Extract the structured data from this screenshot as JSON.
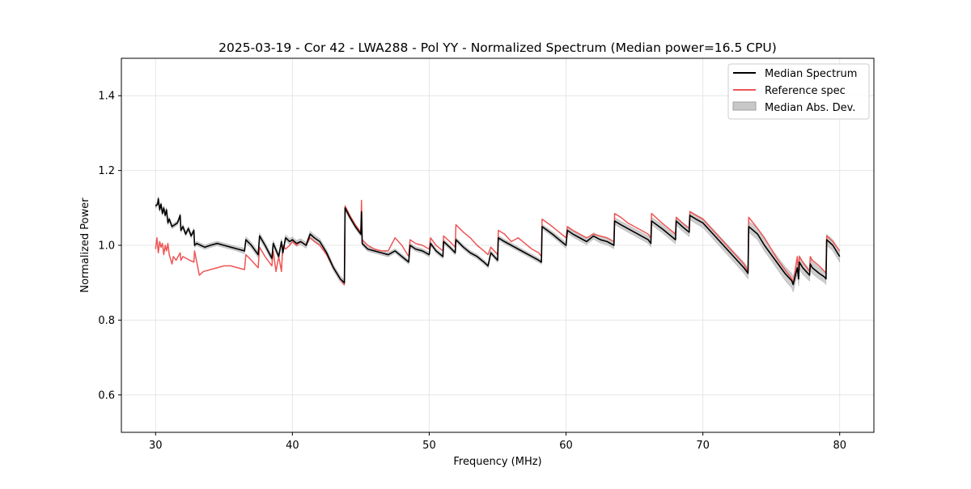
{
  "chart_data": {
    "type": "line",
    "title": "2025-03-19 - Cor 42 - LWA288 - Pol YY - Normalized Spectrum (Median power=16.5 CPU)",
    "xlabel": "Frequency (MHz)",
    "ylabel": "Normalized Power",
    "xlim": [
      27.5,
      82.5
    ],
    "ylim": [
      0.5,
      1.5
    ],
    "xticks": [
      30,
      40,
      50,
      60,
      70,
      80
    ],
    "yticks": [
      0.6,
      0.8,
      1.0,
      1.2,
      1.4
    ],
    "ytick_labels": [
      "0.6",
      "0.8",
      "1.0",
      "1.2",
      "1.4"
    ],
    "grid": true,
    "legend_position": "top-right",
    "series": [
      {
        "name": "Median Spectrum",
        "color": "#000000",
        "x": [
          30.0,
          30.15,
          30.2,
          30.3,
          30.4,
          30.5,
          30.6,
          30.7,
          30.8,
          30.9,
          31.0,
          31.1,
          31.2,
          31.4,
          31.6,
          31.8,
          31.85,
          32.0,
          32.2,
          32.4,
          32.6,
          32.8,
          32.85,
          33.0,
          33.3,
          33.6,
          34.0,
          34.5,
          35.0,
          35.5,
          36.0,
          36.5,
          36.6,
          37.0,
          37.5,
          37.6,
          38.0,
          38.5,
          38.6,
          39.0,
          39.2,
          39.3,
          39.5,
          39.8,
          40.0,
          40.3,
          40.6,
          41.0,
          41.3,
          41.6,
          42.0,
          42.5,
          43.0,
          43.5,
          43.8,
          43.85,
          44.2,
          44.6,
          45.0,
          45.05,
          45.1,
          45.5,
          46.0,
          46.5,
          47.0,
          47.5,
          48.0,
          48.5,
          48.6,
          49.0,
          49.5,
          50.0,
          50.1,
          50.5,
          51.0,
          51.05,
          51.5,
          51.9,
          51.95,
          52.5,
          53.0,
          53.5,
          54.0,
          54.3,
          54.5,
          55.0,
          55.05,
          55.5,
          56.0,
          56.5,
          57.0,
          57.5,
          58.0,
          58.2,
          58.25,
          59.0,
          59.5,
          60.0,
          60.1,
          60.5,
          61.0,
          61.5,
          62.0,
          62.5,
          63.0,
          63.5,
          63.55,
          64.0,
          64.5,
          65.0,
          65.5,
          66.0,
          66.2,
          66.25,
          67.0,
          67.5,
          68.0,
          68.05,
          68.5,
          69.0,
          69.05,
          69.5,
          70.0,
          70.5,
          71.0,
          71.5,
          72.0,
          72.5,
          73.0,
          73.3,
          73.35,
          74.0,
          74.5,
          75.0,
          75.5,
          76.0,
          76.5,
          76.6,
          76.9,
          77.0,
          77.05,
          77.3,
          77.8,
          77.85,
          78.0,
          78.5,
          78.9,
          79.0,
          79.05,
          79.5,
          80.0
        ],
        "values": [
          1.105,
          1.11,
          1.125,
          1.095,
          1.11,
          1.085,
          1.1,
          1.08,
          1.095,
          1.06,
          1.07,
          1.06,
          1.05,
          1.055,
          1.06,
          1.08,
          1.04,
          1.05,
          1.03,
          1.045,
          1.025,
          1.04,
          1.0,
          1.005,
          1.0,
          0.995,
          1.0,
          1.005,
          1.0,
          0.995,
          0.99,
          0.985,
          1.015,
          1.0,
          0.975,
          1.025,
          1.0,
          0.965,
          1.005,
          0.97,
          1.01,
          0.98,
          1.02,
          1.01,
          1.015,
          1.005,
          1.01,
          1.0,
          1.03,
          1.02,
          1.01,
          0.98,
          0.94,
          0.91,
          0.9,
          1.1,
          1.075,
          1.05,
          1.03,
          1.09,
          1.005,
          0.99,
          0.985,
          0.98,
          0.975,
          0.985,
          0.97,
          0.955,
          1.0,
          0.99,
          0.985,
          0.975,
          1.005,
          0.985,
          0.97,
          1.01,
          0.995,
          0.98,
          1.015,
          0.995,
          0.98,
          0.97,
          0.955,
          0.945,
          0.98,
          0.96,
          1.02,
          1.01,
          1.0,
          0.99,
          0.98,
          0.97,
          0.96,
          0.955,
          1.05,
          1.03,
          1.015,
          1.0,
          1.04,
          1.03,
          1.02,
          1.01,
          1.025,
          1.015,
          1.01,
          1.0,
          1.065,
          1.055,
          1.045,
          1.035,
          1.025,
          1.015,
          1.005,
          1.065,
          1.045,
          1.03,
          1.015,
          1.065,
          1.05,
          1.035,
          1.08,
          1.07,
          1.06,
          1.04,
          1.02,
          1.0,
          0.98,
          0.96,
          0.94,
          0.925,
          1.05,
          1.03,
          1.0,
          0.975,
          0.95,
          0.925,
          0.905,
          0.895,
          0.94,
          0.91,
          0.955,
          0.94,
          0.92,
          0.95,
          0.94,
          0.925,
          0.915,
          0.91,
          1.015,
          1.0,
          0.97
        ]
      },
      {
        "name": "Reference spec",
        "color": "#ee5555",
        "x": [
          30.0,
          30.1,
          30.2,
          30.3,
          30.4,
          30.5,
          30.6,
          30.7,
          30.8,
          30.9,
          31.0,
          31.2,
          31.3,
          31.5,
          31.8,
          31.85,
          32.0,
          32.5,
          32.8,
          32.85,
          33.2,
          33.5,
          34.0,
          34.5,
          35.0,
          35.5,
          36.0,
          36.5,
          36.6,
          37.0,
          37.5,
          37.6,
          38.0,
          38.5,
          38.6,
          38.8,
          39.0,
          39.2,
          39.3,
          39.5,
          39.8,
          40.0,
          40.3,
          40.6,
          41.0,
          41.3,
          41.6,
          42.0,
          42.5,
          43.0,
          43.5,
          43.8,
          43.85,
          44.2,
          44.6,
          45.0,
          45.05,
          45.1,
          45.5,
          46.0,
          46.5,
          47.0,
          47.5,
          48.0,
          48.5,
          48.6,
          49.0,
          49.5,
          50.0,
          50.1,
          50.5,
          51.0,
          51.05,
          51.5,
          51.9,
          51.95,
          52.5,
          53.0,
          53.5,
          54.0,
          54.3,
          54.5,
          55.0,
          55.05,
          55.5,
          56.0,
          56.5,
          57.0,
          57.5,
          58.0,
          58.2,
          58.25,
          59.0,
          59.5,
          60.0,
          60.1,
          60.5,
          61.0,
          61.5,
          62.0,
          62.5,
          63.0,
          63.5,
          63.55,
          64.0,
          64.5,
          65.0,
          65.5,
          66.0,
          66.2,
          66.25,
          67.0,
          67.5,
          68.0,
          68.05,
          68.5,
          69.0,
          69.05,
          69.5,
          70.0,
          70.5,
          71.0,
          71.5,
          72.0,
          72.5,
          73.0,
          73.3,
          73.35,
          74.0,
          74.5,
          75.0,
          75.5,
          76.0,
          76.5,
          76.6,
          76.9,
          77.0,
          77.05,
          77.3,
          77.8,
          77.85,
          78.0,
          78.5,
          78.9,
          79.0,
          79.05,
          79.5,
          80.0
        ],
        "values": [
          0.99,
          1.02,
          0.98,
          1.01,
          0.995,
          1.005,
          0.975,
          1.0,
          0.985,
          1.005,
          0.975,
          0.95,
          0.97,
          0.96,
          0.98,
          0.96,
          0.97,
          0.96,
          0.955,
          0.985,
          0.92,
          0.93,
          0.935,
          0.94,
          0.945,
          0.945,
          0.94,
          0.935,
          0.975,
          0.96,
          0.94,
          0.995,
          0.97,
          0.945,
          0.985,
          0.93,
          0.97,
          0.93,
          1.0,
          0.99,
          1.0,
          1.01,
          1.0,
          1.01,
          1.0,
          1.02,
          1.01,
          1.0,
          0.975,
          0.94,
          0.91,
          0.895,
          1.105,
          1.08,
          1.055,
          1.035,
          1.12,
          1.015,
          1.0,
          0.99,
          0.985,
          0.985,
          1.02,
          1.0,
          0.97,
          1.015,
          1.005,
          1.0,
          0.99,
          1.02,
          1.0,
          0.985,
          1.025,
          1.01,
          0.995,
          1.055,
          1.035,
          1.02,
          1.0,
          0.985,
          0.975,
          0.995,
          0.975,
          1.04,
          1.03,
          1.01,
          1.02,
          1.005,
          0.99,
          0.98,
          0.97,
          1.07,
          1.05,
          1.035,
          1.02,
          1.05,
          1.04,
          1.03,
          1.02,
          1.03,
          1.025,
          1.02,
          1.01,
          1.085,
          1.075,
          1.06,
          1.05,
          1.04,
          1.03,
          1.02,
          1.085,
          1.06,
          1.045,
          1.03,
          1.075,
          1.06,
          1.045,
          1.09,
          1.08,
          1.07,
          1.05,
          1.03,
          1.01,
          0.99,
          0.97,
          0.95,
          0.93,
          1.075,
          1.045,
          1.02,
          0.99,
          0.96,
          0.935,
          0.91,
          0.9,
          0.97,
          0.93,
          0.97,
          0.955,
          0.93,
          0.97,
          0.96,
          0.945,
          0.93,
          0.925,
          1.025,
          1.01,
          0.985
        ]
      }
    ],
    "band": {
      "name": "Median Abs. Dev.",
      "color": "#c8c8c8",
      "of_series": "Median Spectrum",
      "x": [
        30.0,
        36.0,
        36.6,
        43.8,
        44.0,
        58.2,
        60.0,
        66.0,
        72.0,
        73.3,
        75.0,
        76.6,
        77.8,
        79.0,
        80.0
      ],
      "half_width": [
        0.006,
        0.006,
        0.008,
        0.008,
        0.006,
        0.006,
        0.008,
        0.01,
        0.014,
        0.015,
        0.016,
        0.02,
        0.016,
        0.015,
        0.015
      ]
    }
  }
}
